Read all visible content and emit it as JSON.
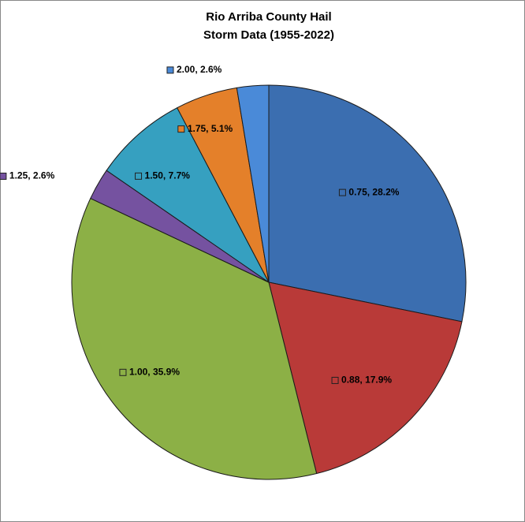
{
  "chart_data": {
    "type": "pie",
    "title": [
      "Rio Arriba County Hail",
      "Storm Data (1955-2022)"
    ],
    "values": [
      28.2,
      17.9,
      35.9,
      2.6,
      7.7,
      5.1,
      2.6
    ],
    "value_labels": [
      "0.75, 28.2%",
      "0.88, 17.9%",
      "1.00, 35.9%",
      "1.25, 2.6%",
      "1.50, 7.7%",
      "1.75, 5.1%",
      "2.00, 2.6%"
    ],
    "colors": [
      "#3b6eb0",
      "#b93a38",
      "#8cb046",
      "#7552a0",
      "#36a0c0",
      "#e4802a",
      "#4a8ad8"
    ]
  }
}
